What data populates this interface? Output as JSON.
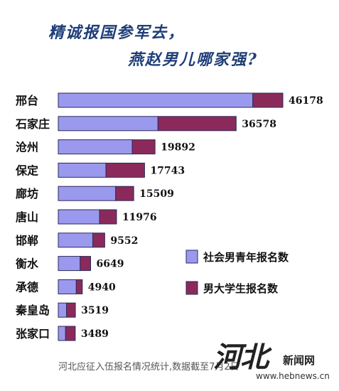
{
  "header": {
    "line1": "精诚报国参军去，",
    "line2": "燕赵男儿哪家强?"
  },
  "footer": {
    "caption": "河北应征入伍报名情况统计,数据截至7月2日"
  },
  "branding": {
    "logo_text": "河北",
    "site_name": "新闻网",
    "site_url": "www.hebnews.cn"
  },
  "colors": {
    "series1": "#9b99ee",
    "series2": "#8b2a5a",
    "border": "#2a2a5a",
    "title": "#1f3e78"
  },
  "chart_data": {
    "type": "bar",
    "orientation": "horizontal",
    "stacked": true,
    "title": "精诚报国参军去，燕赵男儿哪家强?",
    "categories": [
      "邢台",
      "石家庄",
      "沧州",
      "保定",
      "廊坊",
      "唐山",
      "邯郸",
      "衡水",
      "承德",
      "秦皇岛",
      "张家口"
    ],
    "totals": [
      46178,
      36578,
      19892,
      17743,
      15509,
      11976,
      9552,
      6649,
      4940,
      3519,
      3489
    ],
    "series": [
      {
        "name": "社会男青年报名数",
        "values": [
          40000,
          20500,
          15200,
          9800,
          11800,
          8500,
          7100,
          4500,
          3700,
          1700,
          1500
        ]
      },
      {
        "name": "男大学生报名数",
        "values": [
          6178,
          16078,
          4692,
          7943,
          3709,
          3476,
          2452,
          2149,
          1240,
          1819,
          1989
        ]
      }
    ],
    "xlim": [
      0,
      46178
    ],
    "grid": false,
    "legend": "bottom-right"
  }
}
